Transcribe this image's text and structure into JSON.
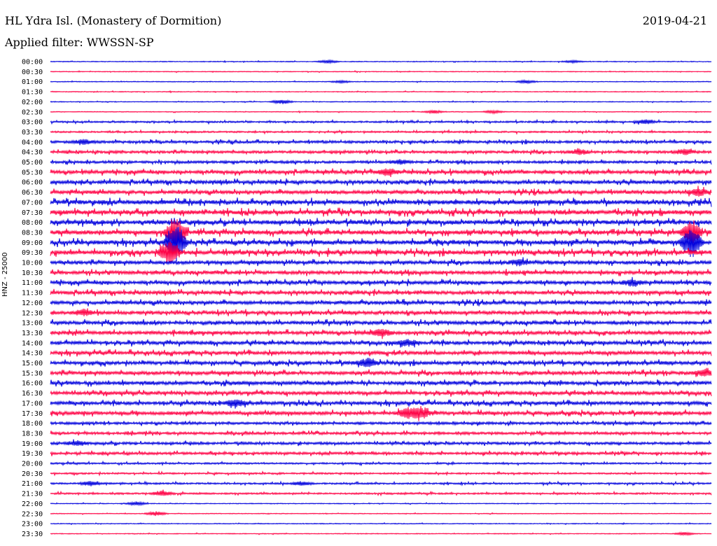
{
  "header": {
    "station": "HL Ydra Isl. (Monastery of Dormition)",
    "date": "2019-04-21",
    "filter": "Applied filter: WWSSN-SP",
    "channel": "HNZ - 25000"
  },
  "colors": {
    "line_a": "#0000dd",
    "line_b": "#ff0044"
  },
  "chart_data": {
    "type": "line",
    "title": "HL Ydra Isl. (Monastery of Dormition)",
    "ylabel": "HNZ - 25000",
    "row_labels": [
      "00:00",
      "00:30",
      "01:00",
      "01:30",
      "02:00",
      "02:30",
      "03:00",
      "03:30",
      "04:00",
      "04:30",
      "05:00",
      "05:30",
      "06:00",
      "06:30",
      "07:00",
      "07:30",
      "08:00",
      "08:30",
      "09:00",
      "09:30",
      "10:00",
      "10:30",
      "11:00",
      "11:30",
      "12:00",
      "12:30",
      "13:00",
      "13:30",
      "14:00",
      "14:30",
      "15:00",
      "15:30",
      "16:00",
      "16:30",
      "17:00",
      "17:30",
      "18:00",
      "18:30",
      "19:00",
      "19:30",
      "20:00",
      "20:30",
      "21:00",
      "21:30",
      "22:00",
      "22:30",
      "23:00",
      "23:30"
    ],
    "row_colors": [
      "blue",
      "red"
    ],
    "noise_level": [
      1,
      1,
      1,
      1,
      1,
      1,
      2,
      2,
      3,
      3,
      3,
      4,
      4,
      4,
      5,
      5,
      5,
      5,
      5,
      5,
      4,
      4,
      4,
      4,
      4,
      4,
      4,
      4,
      4,
      4,
      4,
      4,
      4,
      4,
      4,
      4,
      3,
      3,
      3,
      3,
      2,
      2,
      2,
      2,
      1,
      1,
      1,
      1
    ],
    "events": [
      {
        "row": 0,
        "x_frac": 0.42,
        "amp": 4
      },
      {
        "row": 0,
        "x_frac": 0.79,
        "amp": 3
      },
      {
        "row": 2,
        "x_frac": 0.44,
        "amp": 3
      },
      {
        "row": 2,
        "x_frac": 0.72,
        "amp": 4
      },
      {
        "row": 4,
        "x_frac": 0.35,
        "amp": 6
      },
      {
        "row": 5,
        "x_frac": 0.58,
        "amp": 4
      },
      {
        "row": 5,
        "x_frac": 0.67,
        "amp": 4
      },
      {
        "row": 6,
        "x_frac": 0.9,
        "amp": 6
      },
      {
        "row": 8,
        "x_frac": 0.05,
        "amp": 6
      },
      {
        "row": 9,
        "x_frac": 0.8,
        "amp": 7
      },
      {
        "row": 9,
        "x_frac": 0.96,
        "amp": 7
      },
      {
        "row": 10,
        "x_frac": 0.53,
        "amp": 6
      },
      {
        "row": 11,
        "x_frac": 0.51,
        "amp": 8
      },
      {
        "row": 13,
        "x_frac": 0.98,
        "amp": 9
      },
      {
        "row": 17,
        "x_frac": 0.19,
        "amp": 40
      },
      {
        "row": 17,
        "x_frac": 0.97,
        "amp": 30
      },
      {
        "row": 18,
        "x_frac": 0.19,
        "amp": 50
      },
      {
        "row": 18,
        "x_frac": 0.97,
        "amp": 40
      },
      {
        "row": 19,
        "x_frac": 0.18,
        "amp": 30
      },
      {
        "row": 20,
        "x_frac": 0.71,
        "amp": 8
      },
      {
        "row": 22,
        "x_frac": 0.88,
        "amp": 8
      },
      {
        "row": 25,
        "x_frac": 0.05,
        "amp": 7
      },
      {
        "row": 27,
        "x_frac": 0.5,
        "amp": 10
      },
      {
        "row": 28,
        "x_frac": 0.54,
        "amp": 8
      },
      {
        "row": 30,
        "x_frac": 0.48,
        "amp": 12
      },
      {
        "row": 31,
        "x_frac": 0.99,
        "amp": 8
      },
      {
        "row": 34,
        "x_frac": 0.28,
        "amp": 10
      },
      {
        "row": 35,
        "x_frac": 0.54,
        "amp": 14
      },
      {
        "row": 35,
        "x_frac": 0.56,
        "amp": 14
      },
      {
        "row": 38,
        "x_frac": 0.04,
        "amp": 6
      },
      {
        "row": 42,
        "x_frac": 0.06,
        "amp": 6
      },
      {
        "row": 42,
        "x_frac": 0.38,
        "amp": 5
      },
      {
        "row": 43,
        "x_frac": 0.17,
        "amp": 7
      },
      {
        "row": 44,
        "x_frac": 0.13,
        "amp": 5
      },
      {
        "row": 45,
        "x_frac": 0.16,
        "amp": 6
      },
      {
        "row": 47,
        "x_frac": 0.96,
        "amp": 4
      }
    ]
  }
}
